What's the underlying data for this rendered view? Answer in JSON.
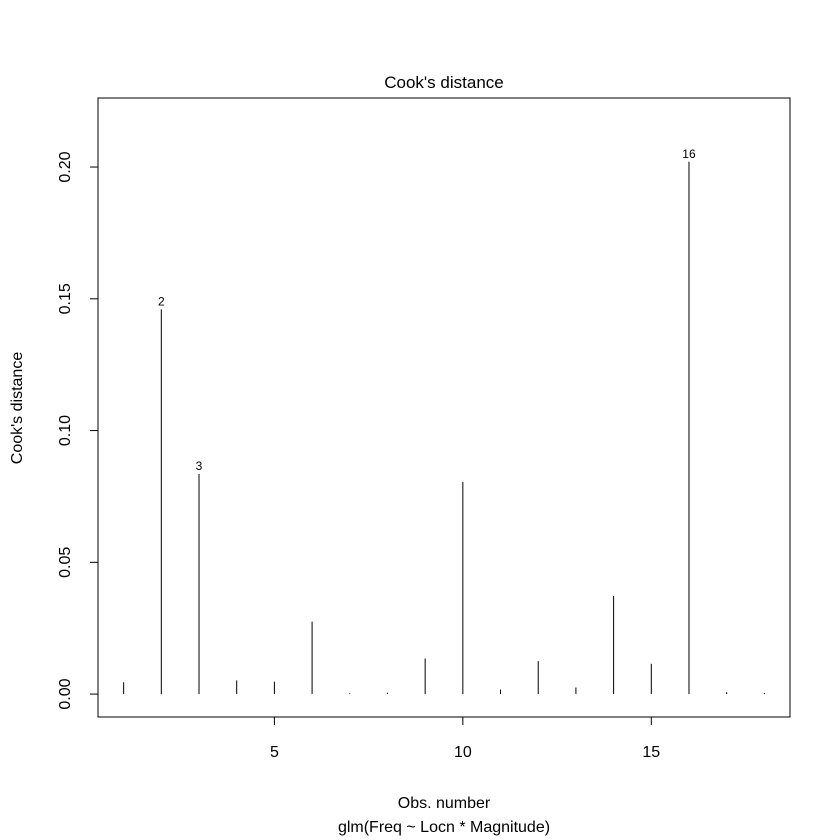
{
  "chart_data": {
    "type": "bar",
    "title": "Cook's distance",
    "xlabel": "Obs. number",
    "subtitle": "glm(Freq ~ Locn * Magnitude)",
    "ylabel": "Cook's distance",
    "xlim": [
      0.32,
      18.68
    ],
    "ylim": [
      -0.0087,
      0.2262
    ],
    "xticks": [
      5,
      10,
      15
    ],
    "yticks": [
      0.0,
      0.05,
      0.1,
      0.15,
      0.2
    ],
    "xtick_labels": [
      "5",
      "10",
      "15"
    ],
    "ytick_labels": [
      "0.00",
      "0.05",
      "0.10",
      "0.15",
      "0.20"
    ],
    "grid": false,
    "x": [
      1,
      2,
      3,
      4,
      5,
      6,
      7,
      8,
      9,
      10,
      11,
      12,
      13,
      14,
      15,
      16,
      17,
      18
    ],
    "values": [
      0.0045,
      0.146,
      0.0835,
      0.0052,
      0.0047,
      0.0275,
      0.0003,
      0.0005,
      0.0135,
      0.0805,
      0.0017,
      0.0125,
      0.0025,
      0.0372,
      0.0115,
      0.202,
      0.0007,
      0.0004
    ],
    "point_labels": [
      {
        "x": 2,
        "label": "2"
      },
      {
        "x": 3,
        "label": "3"
      },
      {
        "x": 16,
        "label": "16"
      }
    ]
  }
}
